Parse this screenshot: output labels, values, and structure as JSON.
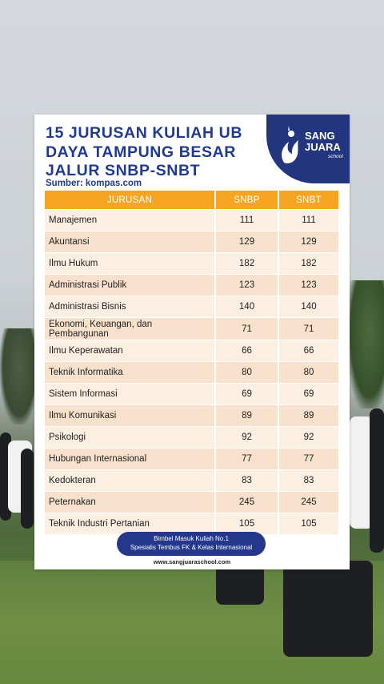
{
  "infographic": {
    "title_lines": [
      "15 JURUSAN KULIAH UB",
      "DAYA TAMPUNG BESAR",
      "JALUR SNBP-SNBT"
    ],
    "source": "Sumber: kompas.com",
    "logo": {
      "line1": "SANG",
      "line2": "JUARA",
      "sub": "school",
      "icon": "flame-figure-icon"
    },
    "colors": {
      "title": "#1f3a8f",
      "header": "#f6a523",
      "row_light": "#fbefe2",
      "row_dark": "#f8e1cc",
      "logo_bg": "#23357f"
    },
    "table": {
      "headers": [
        "JURUSAN",
        "SNBP",
        "SNBT"
      ],
      "rows": [
        {
          "jurusan": "Manajemen",
          "snbp": "111",
          "snbt": "111"
        },
        {
          "jurusan": "Akuntansi",
          "snbp": "129",
          "snbt": "129"
        },
        {
          "jurusan": "Ilmu Hukum",
          "snbp": "182",
          "snbt": "182"
        },
        {
          "jurusan": "Administrasi Publik",
          "snbp": "123",
          "snbt": "123"
        },
        {
          "jurusan": "Administrasi Bisnis",
          "snbp": "140",
          "snbt": "140"
        },
        {
          "jurusan": "Ekonomi, Keuangan, dan Pembangunan",
          "snbp": "71",
          "snbt": "71"
        },
        {
          "jurusan": "Ilmu Keperawatan",
          "snbp": "66",
          "snbt": "66"
        },
        {
          "jurusan": "Teknik Informatika",
          "snbp": "80",
          "snbt": "80"
        },
        {
          "jurusan": "Sistem Informasi",
          "snbp": "69",
          "snbt": "69"
        },
        {
          "jurusan": "Ilmu Komunikasi",
          "snbp": "89",
          "snbt": "89"
        },
        {
          "jurusan": "Psikologi",
          "snbp": "92",
          "snbt": "92"
        },
        {
          "jurusan": "Hubungan Internasional",
          "snbp": "77",
          "snbt": "77"
        },
        {
          "jurusan": "Kedokteran",
          "snbp": "83",
          "snbt": "83"
        },
        {
          "jurusan": "Peternakan",
          "snbp": "245",
          "snbt": "245"
        },
        {
          "jurusan": "Teknik Industri Pertanian",
          "snbp": "105",
          "snbt": "105"
        }
      ]
    },
    "banner": {
      "line1": "Bimbel Masuk Kuliah No.1",
      "line2": "Spesialis Tembus FK & Kelas Internasional"
    },
    "website": "www.sangjuaraschool.com"
  }
}
